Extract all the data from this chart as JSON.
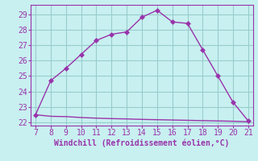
{
  "xlabel": "Windchill (Refroidissement éolien,°C)",
  "x": [
    7,
    8,
    9,
    10,
    11,
    12,
    13,
    14,
    15,
    16,
    17,
    18,
    19,
    20,
    21
  ],
  "y_upper": [
    22.5,
    24.7,
    25.5,
    26.4,
    27.3,
    27.7,
    27.85,
    28.8,
    29.25,
    28.5,
    28.4,
    26.7,
    25.0,
    23.3,
    22.1
  ],
  "y_lower": [
    22.5,
    22.4,
    22.38,
    22.32,
    22.28,
    22.25,
    22.23,
    22.2,
    22.18,
    22.16,
    22.14,
    22.12,
    22.1,
    22.08,
    22.05
  ],
  "line_color": "#9933aa",
  "bg_color": "#c8f0f0",
  "grid_color": "#99cccc",
  "axis_color": "#9933aa",
  "ylim_min": 21.8,
  "ylim_max": 29.6,
  "xlim_min": 6.7,
  "xlim_max": 21.3,
  "yticks": [
    22,
    23,
    24,
    25,
    26,
    27,
    28,
    29
  ],
  "xticks": [
    7,
    8,
    9,
    10,
    11,
    12,
    13,
    14,
    15,
    16,
    17,
    18,
    19,
    20,
    21
  ],
  "xlabel_fontsize": 7,
  "tick_fontsize": 7,
  "markersize": 3,
  "linewidth": 1.0
}
